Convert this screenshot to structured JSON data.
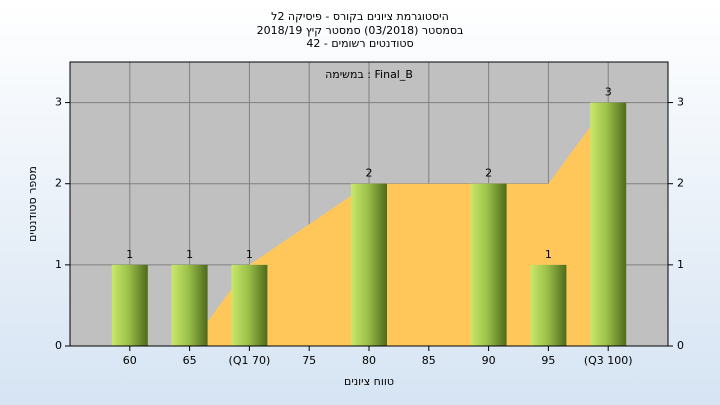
{
  "chart_data": {
    "type": "bar",
    "title": "היסטוגרמת ציונים בקורס - פיסיקה 2ל",
    "subtitle": "בסמסטר (03/2018) סמסטר קיץ 2018/19",
    "subtitle2": "סטודנטים רשומים - 42",
    "annotation": "במשימה : Final_B",
    "x_label": "טווח ציונים",
    "y_label": "מספר סטודנטים",
    "categories": [
      "60",
      "65",
      "(Q1 70)",
      "75",
      "80",
      "85",
      "90",
      "95",
      "(Q3 100)"
    ],
    "series": [
      {
        "type": "area",
        "color": "#ffc75a",
        "values": [
          0,
          0,
          1,
          1.5,
          2,
          2,
          2,
          2,
          3
        ]
      },
      {
        "type": "bar",
        "color": "#8fb23c",
        "values": [
          1,
          1,
          1,
          0,
          2,
          0,
          2,
          1,
          3
        ],
        "value_labels": [
          "1",
          "1",
          "1",
          null,
          "2",
          null,
          "2",
          "1",
          "3"
        ]
      }
    ],
    "ylim": [
      0,
      3.5
    ],
    "yticks": [
      0,
      1,
      2,
      3
    ],
    "y2lim": [
      0,
      3.5
    ],
    "y2ticks": [
      0,
      1,
      2,
      3
    ],
    "grid": true
  }
}
